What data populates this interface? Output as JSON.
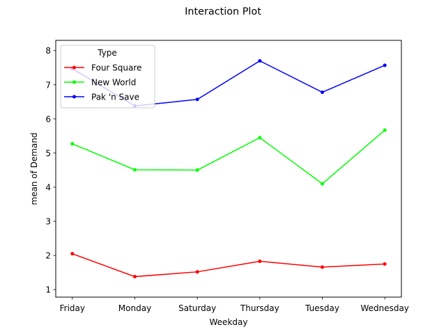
{
  "chart_data": {
    "type": "line",
    "title": "Interaction Plot",
    "xlabel": "Weekday",
    "ylabel": "mean of Demand",
    "categories": [
      "Friday",
      "Monday",
      "Saturday",
      "Thursday",
      "Tuesday",
      "Wednesday"
    ],
    "ylim": [
      0.78,
      8.3
    ],
    "yticks": [
      1,
      2,
      3,
      4,
      5,
      6,
      7,
      8
    ],
    "grid": false,
    "legend": {
      "title": "Type",
      "placement": "top-left"
    },
    "series": [
      {
        "name": "Four Square",
        "color": "#ff0000",
        "values": [
          2.05,
          1.38,
          1.52,
          1.83,
          1.66,
          1.75
        ]
      },
      {
        "name": "New World",
        "color": "#00ff00",
        "values": [
          5.27,
          4.51,
          4.5,
          5.45,
          4.1,
          5.67
        ]
      },
      {
        "name": "Pak 'n Save",
        "color": "#0000ff",
        "values": [
          7.47,
          6.38,
          6.57,
          7.7,
          6.78,
          7.57
        ]
      }
    ]
  }
}
